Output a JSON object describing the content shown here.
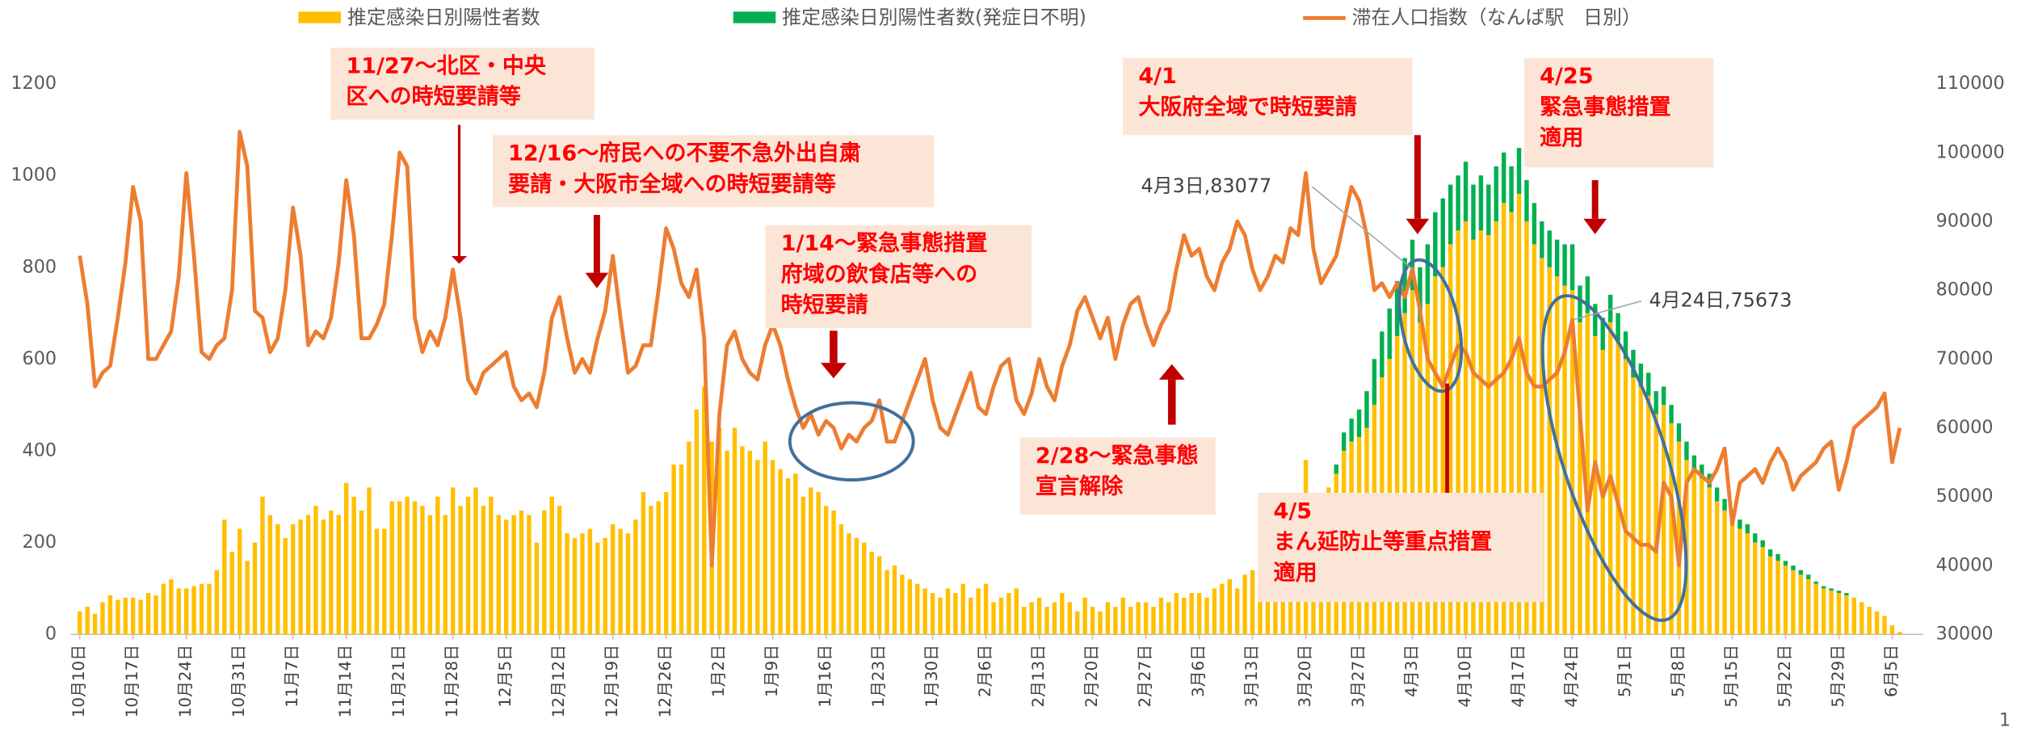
{
  "chart_data": {
    "type": "combo",
    "page_number": "1",
    "categories": [
      "10月10日",
      null,
      null,
      null,
      null,
      null,
      null,
      "10月17日",
      null,
      null,
      null,
      null,
      null,
      null,
      "10月24日",
      null,
      null,
      null,
      null,
      null,
      null,
      "10月31日",
      null,
      null,
      null,
      null,
      null,
      null,
      "11月7日",
      null,
      null,
      null,
      null,
      null,
      null,
      "11月14日",
      null,
      null,
      null,
      null,
      null,
      null,
      "11月21日",
      null,
      null,
      null,
      null,
      null,
      null,
      "11月28日",
      null,
      null,
      null,
      null,
      null,
      null,
      "12月5日",
      null,
      null,
      null,
      null,
      null,
      null,
      "12月12日",
      null,
      null,
      null,
      null,
      null,
      null,
      "12月19日",
      null,
      null,
      null,
      null,
      null,
      null,
      "12月26日",
      null,
      null,
      null,
      null,
      null,
      null,
      "1月2日",
      null,
      null,
      null,
      null,
      null,
      null,
      "1月9日",
      null,
      null,
      null,
      null,
      null,
      null,
      "1月16日",
      null,
      null,
      null,
      null,
      null,
      null,
      "1月23日",
      null,
      null,
      null,
      null,
      null,
      null,
      "1月30日",
      null,
      null,
      null,
      null,
      null,
      null,
      "2月6日",
      null,
      null,
      null,
      null,
      null,
      null,
      "2月13日",
      null,
      null,
      null,
      null,
      null,
      null,
      "2月20日",
      null,
      null,
      null,
      null,
      null,
      null,
      "2月27日",
      null,
      null,
      null,
      null,
      null,
      null,
      "3月6日",
      null,
      null,
      null,
      null,
      null,
      null,
      "3月13日",
      null,
      null,
      null,
      null,
      null,
      null,
      "3月20日",
      null,
      null,
      null,
      null,
      null,
      null,
      "3月27日",
      null,
      null,
      null,
      null,
      null,
      null,
      "4月3日",
      null,
      null,
      null,
      null,
      null,
      null,
      "4月10日",
      null,
      null,
      null,
      null,
      null,
      null,
      "4月17日",
      null,
      null,
      null,
      null,
      null,
      null,
      "4月24日",
      null,
      null,
      null,
      null,
      null,
      null,
      "5月1日",
      null,
      null,
      null,
      null,
      null,
      null,
      "5月8日",
      null,
      null,
      null,
      null,
      null,
      null,
      "5月15日",
      null,
      null,
      null,
      null,
      null,
      null,
      "5月22日",
      null,
      null,
      null,
      null,
      null,
      null,
      "5月29日",
      null,
      null,
      null,
      null,
      null,
      null,
      "6月5日",
      null
    ],
    "series": [
      {
        "name": "推定感染日別陽性者数",
        "type": "bar",
        "color": "#ffc000",
        "values": [
          50,
          60,
          45,
          70,
          85,
          75,
          80,
          80,
          75,
          90,
          85,
          110,
          120,
          100,
          100,
          105,
          110,
          110,
          140,
          250,
          180,
          230,
          160,
          200,
          300,
          260,
          240,
          210,
          240,
          250,
          260,
          280,
          250,
          270,
          260,
          330,
          300,
          270,
          320,
          230,
          230,
          290,
          290,
          300,
          290,
          280,
          260,
          300,
          260,
          320,
          280,
          300,
          320,
          280,
          300,
          260,
          250,
          260,
          270,
          260,
          200,
          270,
          300,
          280,
          220,
          210,
          220,
          230,
          200,
          210,
          240,
          230,
          220,
          250,
          310,
          280,
          290,
          310,
          370,
          370,
          420,
          490,
          540,
          420,
          450,
          400,
          450,
          410,
          400,
          380,
          420,
          380,
          360,
          340,
          350,
          300,
          320,
          310,
          280,
          270,
          240,
          220,
          210,
          200,
          180,
          170,
          140,
          150,
          130,
          120,
          110,
          100,
          90,
          80,
          100,
          90,
          110,
          80,
          100,
          110,
          70,
          80,
          90,
          100,
          60,
          70,
          80,
          60,
          70,
          90,
          70,
          50,
          80,
          60,
          50,
          70,
          60,
          80,
          60,
          70,
          70,
          60,
          80,
          70,
          90,
          80,
          90,
          90,
          80,
          100,
          110,
          120,
          100,
          130,
          140,
          120,
          150,
          160,
          180,
          190,
          220,
          380,
          250,
          300,
          320,
          350,
          400,
          420,
          430,
          450,
          500,
          560,
          600,
          650,
          700,
          750,
          680,
          720,
          780,
          800,
          850,
          880,
          900,
          860,
          880,
          870,
          900,
          940,
          920,
          960,
          900,
          850,
          820,
          800,
          780,
          760,
          750,
          680,
          700,
          650,
          620,
          680,
          640,
          600,
          560,
          540,
          520,
          480,
          500,
          460,
          420,
          380,
          360,
          340,
          320,
          290,
          270,
          250,
          230,
          220,
          200,
          190,
          170,
          160,
          150,
          140,
          130,
          120,
          110,
          100,
          95,
          90,
          85,
          80,
          70,
          60,
          50,
          40,
          20,
          5
        ]
      },
      {
        "name": "推定感染日別陽性者数(発症日不明)",
        "type": "bar",
        "color": "#00b050",
        "values": [
          0,
          0,
          0,
          0,
          0,
          0,
          0,
          0,
          0,
          0,
          0,
          0,
          0,
          0,
          0,
          0,
          0,
          0,
          0,
          0,
          0,
          0,
          0,
          0,
          0,
          0,
          0,
          0,
          0,
          0,
          0,
          0,
          0,
          0,
          0,
          0,
          0,
          0,
          0,
          0,
          0,
          0,
          0,
          0,
          0,
          0,
          0,
          0,
          0,
          0,
          0,
          0,
          0,
          0,
          0,
          0,
          0,
          0,
          0,
          0,
          0,
          0,
          0,
          0,
          0,
          0,
          0,
          0,
          0,
          0,
          0,
          0,
          0,
          0,
          0,
          0,
          0,
          0,
          0,
          0,
          0,
          0,
          0,
          0,
          0,
          0,
          0,
          0,
          0,
          0,
          0,
          0,
          0,
          0,
          0,
          0,
          0,
          0,
          0,
          0,
          0,
          0,
          0,
          0,
          0,
          0,
          0,
          0,
          0,
          0,
          0,
          0,
          0,
          0,
          0,
          0,
          0,
          0,
          0,
          0,
          0,
          0,
          0,
          0,
          0,
          0,
          0,
          0,
          0,
          0,
          0,
          0,
          0,
          0,
          0,
          0,
          0,
          0,
          0,
          0,
          0,
          0,
          0,
          0,
          0,
          0,
          0,
          0,
          0,
          0,
          0,
          0,
          0,
          0,
          0,
          0,
          0,
          0,
          0,
          0,
          0,
          0,
          0,
          0,
          0,
          20,
          40,
          50,
          60,
          80,
          100,
          100,
          110,
          120,
          120,
          110,
          120,
          130,
          140,
          150,
          130,
          120,
          130,
          120,
          120,
          110,
          120,
          110,
          100,
          100,
          90,
          90,
          80,
          80,
          80,
          90,
          100,
          80,
          80,
          70,
          70,
          60,
          60,
          60,
          60,
          50,
          50,
          50,
          40,
          40,
          40,
          40,
          30,
          30,
          30,
          30,
          25,
          20,
          20,
          20,
          20,
          15,
          15,
          15,
          10,
          10,
          10,
          10,
          5,
          5,
          5,
          5,
          5,
          0,
          0,
          0,
          0,
          0,
          0,
          0
        ]
      },
      {
        "name": "滞在人口指数（なんば駅　日別）",
        "type": "line",
        "axis": "y2",
        "color": "#ed7d31",
        "values": [
          85000,
          78000,
          66000,
          68000,
          69000,
          76000,
          84000,
          95000,
          90000,
          70000,
          70000,
          72000,
          74000,
          82000,
          97000,
          85000,
          71000,
          70000,
          72000,
          73000,
          80000,
          103000,
          98000,
          77000,
          76000,
          71000,
          73000,
          80000,
          92000,
          85000,
          72000,
          74000,
          73000,
          76000,
          84000,
          96000,
          88000,
          73000,
          73000,
          75000,
          78000,
          88000,
          100000,
          98000,
          76000,
          71000,
          74000,
          72000,
          76000,
          83000,
          76000,
          67000,
          65000,
          68000,
          69000,
          70000,
          71000,
          66000,
          64000,
          65000,
          63000,
          68000,
          76000,
          79000,
          73000,
          68000,
          70000,
          68000,
          73000,
          77000,
          85000,
          76000,
          68000,
          69000,
          72000,
          72000,
          80000,
          89000,
          86000,
          81000,
          79000,
          83000,
          73000,
          40000,
          62000,
          72000,
          74000,
          70000,
          68000,
          67000,
          72000,
          75000,
          72000,
          67000,
          63000,
          60000,
          62000,
          59000,
          61000,
          60000,
          57000,
          59000,
          58000,
          60000,
          61000,
          64000,
          58000,
          58000,
          61000,
          64000,
          67000,
          70000,
          64000,
          60000,
          59000,
          62000,
          65000,
          68000,
          63000,
          62000,
          66000,
          69000,
          70000,
          64000,
          62000,
          65000,
          70000,
          66000,
          64000,
          69000,
          72000,
          77000,
          79000,
          76000,
          73000,
          76000,
          70000,
          75000,
          78000,
          79000,
          75000,
          72000,
          75000,
          77000,
          83000,
          88000,
          85000,
          86000,
          82000,
          80000,
          84000,
          86000,
          90000,
          88000,
          83000,
          80000,
          82000,
          85000,
          84000,
          89000,
          88000,
          97000,
          86000,
          81000,
          83000,
          85000,
          90000,
          95000,
          93000,
          88000,
          80000,
          81000,
          79000,
          81000,
          79000,
          83077,
          77000,
          70000,
          68000,
          66000,
          69000,
          72000,
          71000,
          68000,
          67000,
          66000,
          67000,
          68000,
          70000,
          73000,
          68000,
          66000,
          66000,
          67000,
          68000,
          71000,
          75673,
          62000,
          48000,
          55000,
          50000,
          53000,
          49000,
          45000,
          44000,
          43000,
          43000,
          42000,
          52000,
          50000,
          40000,
          52000,
          54000,
          53000,
          52000,
          54000,
          57000,
          46000,
          52000,
          53000,
          54000,
          52000,
          55000,
          57000,
          55000,
          51000,
          53000,
          54000,
          55000,
          57000,
          58000,
          51000,
          55000,
          60000,
          61000,
          62000,
          63000,
          65000,
          55000,
          60000
        ]
      }
    ],
    "ylim": [
      0,
      1200
    ],
    "yticks": [
      0,
      200,
      400,
      600,
      800,
      1000,
      1200
    ],
    "y2lim": [
      30000,
      110000
    ],
    "y2ticks": [
      30000,
      40000,
      50000,
      60000,
      70000,
      80000,
      90000,
      100000,
      110000
    ],
    "legend": "top",
    "annotations": [
      {
        "lines": [
          "11/27～北区・中央",
          "区への時短要請等"
        ]
      },
      {
        "lines": [
          "12/16～府民への不要不急外出自粛",
          "要請・大阪市全域への時短要請等"
        ]
      },
      {
        "lines": [
          "1/14～緊急事態措置",
          "府域の飲食店等への",
          "時短要請"
        ]
      },
      {
        "lines": [
          "2/28～緊急事態",
          "宣言解除"
        ]
      },
      {
        "lines": [
          "4/1",
          "大阪府全域で時短要請"
        ]
      },
      {
        "lines": [
          "4/5",
          "まん延防止等重点措置",
          "適用"
        ]
      },
      {
        "lines": [
          "4/25",
          "緊急事態措置",
          "適用"
        ]
      }
    ],
    "point_labels": [
      "4月3日,83077",
      "4月24日,75673"
    ]
  }
}
